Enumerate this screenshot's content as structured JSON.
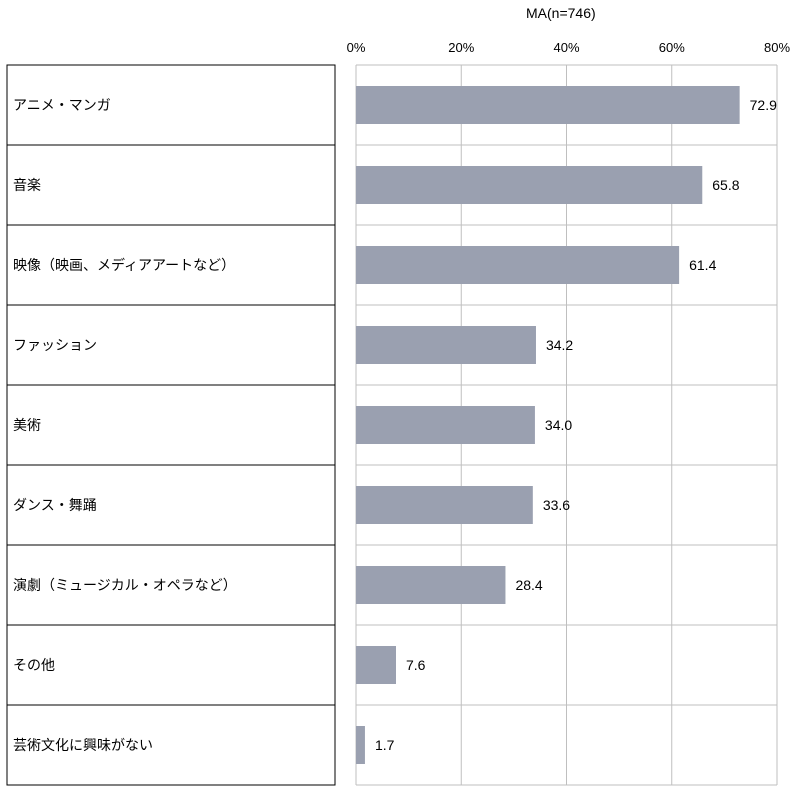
{
  "note": "MA(n=746)",
  "chart_data": {
    "type": "bar",
    "orientation": "horizontal",
    "title": "",
    "xlabel": "",
    "ylabel": "",
    "xlim": [
      0,
      80
    ],
    "ticks": [
      "0%",
      "20%",
      "40%",
      "60%",
      "80%"
    ],
    "tick_values": [
      0,
      20,
      40,
      60,
      80
    ],
    "grid": true,
    "bar_color": "#9aa0b0",
    "categories": [
      "アニメ・マンガ",
      "音楽",
      "映像（映画、メディアアートなど）",
      "ファッション",
      "美術",
      "ダンス・舞踊",
      "演劇（ミュージカル・オペラなど）",
      "その他",
      "芸術文化に興味がない"
    ],
    "values": [
      72.9,
      65.8,
      61.4,
      34.2,
      34.0,
      33.6,
      28.4,
      7.6,
      1.7
    ],
    "value_labels": [
      "72.9",
      "65.8",
      "61.4",
      "34.2",
      "34.0",
      "33.6",
      "28.4",
      "7.6",
      "1.7"
    ]
  }
}
